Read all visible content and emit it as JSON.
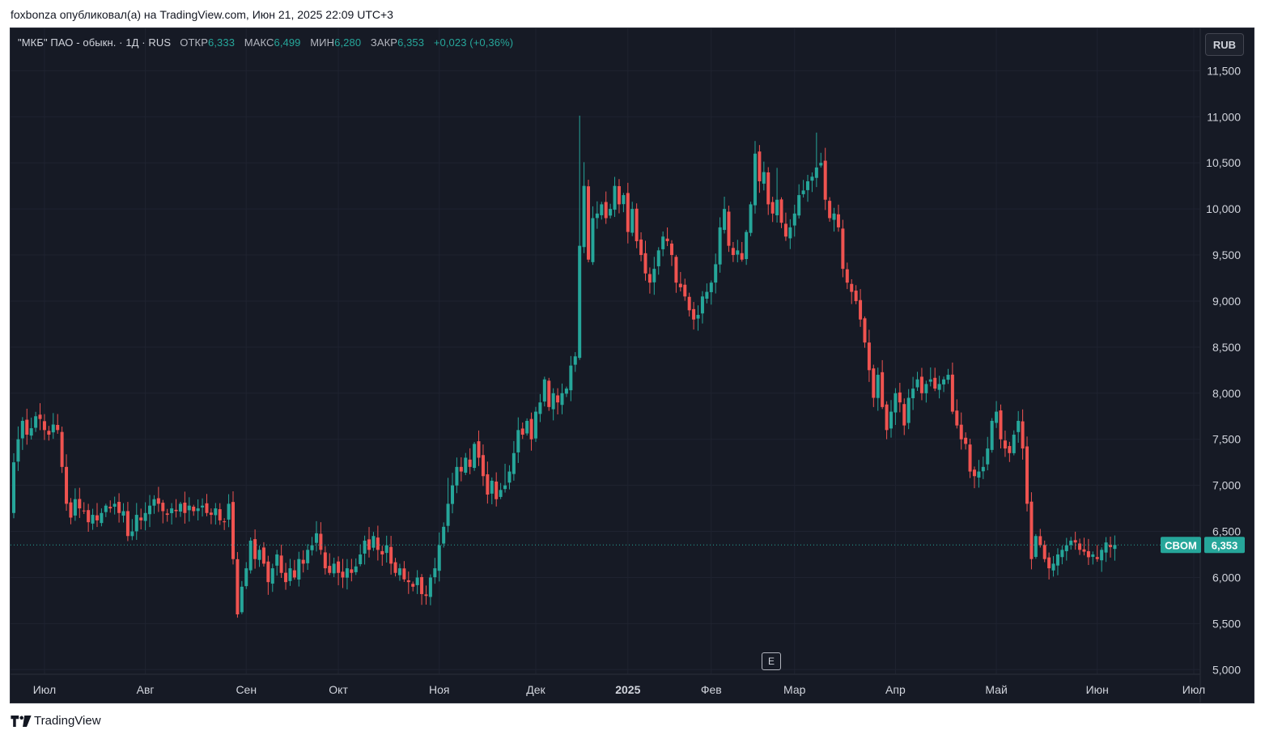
{
  "header": {
    "published_by": "foxbonza опубликовал(а) на TradingView.com, Июн 21, 2025 22:09 UTC+3"
  },
  "legend": {
    "symbol": "\"МКБ\" ПАО - обыкн. · 1Д · RUS",
    "open_label": "ОТКР",
    "open_value": "6,333",
    "high_label": "МАКС",
    "high_value": "6,499",
    "low_label": "МИН",
    "low_value": "6,280",
    "close_label": "ЗАКР",
    "close_value": "6,353",
    "change": "+0,023 (+0,36%)"
  },
  "currency": "RUB",
  "ticker_badge": {
    "symbol": "CBOM",
    "price": "6,353"
  },
  "event_marker": "E",
  "footer": {
    "brand": "TradingView"
  },
  "colors": {
    "up": "#26a69a",
    "down": "#ef5350",
    "background": "#161a25",
    "grid": "#1f2330",
    "axis_text": "#d1d4dc",
    "price_line": "#26a69a"
  },
  "chart_data": {
    "type": "candlestick",
    "symbol": "CBOM",
    "interval": "1D",
    "currency": "RUB",
    "last_price": 6.353,
    "ylim": [
      4.95,
      11.96
    ],
    "y_ticks": [
      {
        "v": 5.0,
        "label": "5,000"
      },
      {
        "v": 5.5,
        "label": "5,500"
      },
      {
        "v": 6.0,
        "label": "6,000"
      },
      {
        "v": 6.5,
        "label": "6,500"
      },
      {
        "v": 7.0,
        "label": "7,000"
      },
      {
        "v": 7.5,
        "label": "7,500"
      },
      {
        "v": 8.0,
        "label": "8,000"
      },
      {
        "v": 8.5,
        "label": "8,500"
      },
      {
        "v": 9.0,
        "label": "9,000"
      },
      {
        "v": 9.5,
        "label": "9,500"
      },
      {
        "v": 10.0,
        "label": "10,000"
      },
      {
        "v": 10.5,
        "label": "10,500"
      },
      {
        "v": 11.0,
        "label": "11,000"
      },
      {
        "v": 11.5,
        "label": "11,500"
      }
    ],
    "x_ticks": [
      {
        "i": 7,
        "label": "Июл",
        "bold": false
      },
      {
        "i": 30,
        "label": "Авг",
        "bold": false
      },
      {
        "i": 53,
        "label": "Сен",
        "bold": false
      },
      {
        "i": 74,
        "label": "Окт",
        "bold": false
      },
      {
        "i": 97,
        "label": "Ноя",
        "bold": false
      },
      {
        "i": 119,
        "label": "Дек",
        "bold": false
      },
      {
        "i": 140,
        "label": "2025",
        "bold": true
      },
      {
        "i": 159,
        "label": "Фев",
        "bold": false
      },
      {
        "i": 178,
        "label": "Мар",
        "bold": false
      },
      {
        "i": 201,
        "label": "Апр",
        "bold": false
      },
      {
        "i": 224,
        "label": "Май",
        "bold": false
      },
      {
        "i": 247,
        "label": "Июн",
        "bold": false
      },
      {
        "i": 269,
        "label": "Июл",
        "bold": false
      }
    ],
    "closes": [
      7.25,
      7.5,
      7.7,
      7.55,
      7.62,
      7.75,
      7.72,
      7.6,
      7.55,
      7.66,
      7.6,
      7.2,
      6.8,
      6.65,
      6.85,
      6.75,
      6.72,
      6.6,
      6.68,
      6.62,
      6.7,
      6.78,
      6.75,
      6.8,
      6.7,
      6.72,
      6.45,
      6.5,
      6.68,
      6.62,
      6.7,
      6.78,
      6.85,
      6.8,
      6.72,
      6.68,
      6.75,
      6.72,
      6.8,
      6.7,
      6.78,
      6.72,
      6.75,
      6.78,
      6.7,
      6.68,
      6.75,
      6.62,
      6.6,
      6.8,
      6.2,
      5.6,
      5.9,
      6.1,
      6.4,
      6.2,
      6.3,
      6.15,
      5.95,
      6.1,
      6.25,
      6.05,
      5.95,
      6.1,
      6.0,
      6.2,
      6.15,
      6.3,
      6.35,
      6.48,
      6.3,
      6.1,
      6.05,
      6.15,
      6.05,
      6.0,
      6.1,
      6.05,
      6.12,
      6.25,
      6.4,
      6.3,
      6.45,
      6.3,
      6.25,
      6.35,
      6.15,
      6.05,
      6.1,
      5.98,
      5.95,
      5.9,
      6.0,
      5.82,
      5.8,
      6.0,
      6.1,
      6.35,
      6.55,
      6.8,
      7.0,
      7.2,
      7.15,
      7.3,
      7.2,
      7.45,
      7.3,
      7.1,
      6.9,
      7.05,
      6.85,
      6.95,
      7.0,
      7.15,
      7.35,
      7.6,
      7.55,
      7.7,
      7.5,
      7.8,
      7.9,
      8.15,
      7.85,
      8.0,
      7.9,
      8.0,
      8.05,
      8.3,
      8.4,
      9.6,
      10.25,
      9.45,
      9.9,
      9.95,
      10.05,
      9.9,
      10.0,
      10.25,
      10.05,
      10.15,
      9.75,
      10.0,
      9.65,
      9.5,
      9.3,
      9.2,
      9.35,
      9.55,
      9.7,
      9.65,
      9.5,
      9.2,
      9.15,
      9.05,
      8.9,
      8.8,
      8.85,
      9.05,
      9.1,
      9.2,
      9.4,
      9.8,
      10.0,
      9.6,
      9.5,
      9.55,
      9.45,
      9.75,
      10.05,
      10.6,
      10.3,
      10.4,
      10.05,
      9.95,
      10.1,
      9.85,
      9.7,
      9.8,
      9.95,
      10.15,
      10.2,
      10.3,
      10.35,
      10.45,
      10.5,
      10.1,
      9.9,
      9.95,
      9.8,
      9.35,
      9.2,
      9.1,
      9.0,
      8.8,
      8.55,
      8.25,
      7.95,
      8.2,
      7.85,
      7.6,
      7.8,
      8.0,
      7.9,
      7.65,
      7.95,
      8.05,
      8.15,
      8.0,
      8.1,
      8.15,
      8.05,
      8.1,
      8.15,
      8.2,
      7.8,
      7.65,
      7.5,
      7.45,
      7.15,
      7.1,
      7.15,
      7.2,
      7.4,
      7.7,
      7.8,
      7.5,
      7.4,
      7.35,
      7.55,
      7.7,
      7.4,
      6.8,
      6.2,
      6.45,
      6.35,
      6.2,
      6.1,
      6.15,
      6.25,
      6.3,
      6.35,
      6.4,
      6.38,
      6.3,
      6.28,
      6.22,
      6.25,
      6.2,
      6.3,
      6.38,
      6.33,
      6.353
    ]
  }
}
